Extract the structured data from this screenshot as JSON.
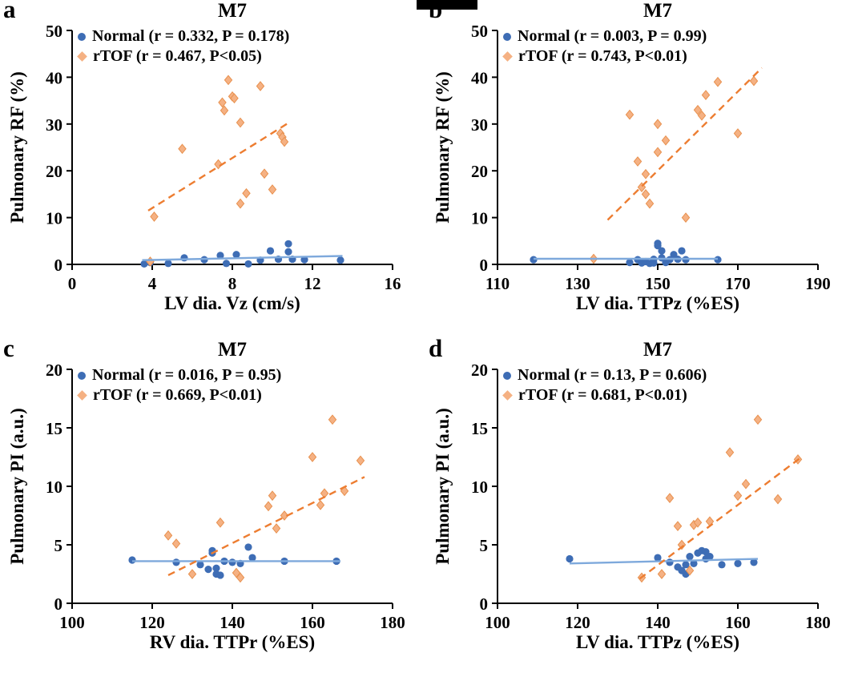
{
  "figure": {
    "panel_letters": [
      "a",
      "b",
      "c",
      "d"
    ]
  },
  "chart_data": [
    {
      "id": "a",
      "letter": "a",
      "type": "scatter",
      "title": "M7",
      "xlabel": "LV dia. Vz (cm/s)",
      "ylabel": "Pulmonary RF (%)",
      "xlim": [
        0,
        16
      ],
      "xticks": [
        0,
        4,
        8,
        12,
        16
      ],
      "ylim": [
        0,
        50
      ],
      "yticks": [
        0,
        10,
        20,
        30,
        40,
        50
      ],
      "grid": false,
      "legend_position": "top-left-inside",
      "legend": [
        {
          "label": "Normal (r = 0.332, P = 0.178)",
          "marker": "circle",
          "color": "#3E6DB5"
        },
        {
          "label": "rTOF (r = 0.467, P<0.05)",
          "marker": "diamond",
          "color": "#F5B183"
        }
      ],
      "series": [
        {
          "name": "Normal",
          "marker": "circle",
          "color": "#3E6DB5",
          "trend": {
            "x1": 3.5,
            "y1": 0.9,
            "x2": 13.5,
            "y2": 1.8,
            "style": "solid",
            "color": "#7EA9DC"
          },
          "points": [
            [
              3.6,
              0.1
            ],
            [
              3.9,
              0.4
            ],
            [
              4.8,
              0.2
            ],
            [
              5.6,
              1.4
            ],
            [
              6.6,
              1.0
            ],
            [
              7.4,
              1.9
            ],
            [
              7.7,
              0.2
            ],
            [
              8.2,
              2.1
            ],
            [
              8.8,
              0.1
            ],
            [
              9.4,
              0.9
            ],
            [
              9.9,
              2.9
            ],
            [
              10.3,
              1.1
            ],
            [
              10.8,
              4.4
            ],
            [
              10.8,
              2.7
            ],
            [
              11.0,
              1.1
            ],
            [
              11.6,
              1.0
            ],
            [
              13.4,
              0.9
            ]
          ]
        },
        {
          "name": "rTOF",
          "marker": "diamond",
          "color": "#F5B183",
          "stroke": "#E8914F",
          "trend": {
            "x1": 3.8,
            "y1": 11.5,
            "x2": 10.9,
            "y2": 30.5,
            "style": "dashed",
            "color": "#ED7D31"
          },
          "points": [
            [
              3.9,
              0.6
            ],
            [
              4.1,
              10.2
            ],
            [
              5.5,
              24.7
            ],
            [
              7.3,
              21.4
            ],
            [
              7.5,
              34.6
            ],
            [
              7.6,
              32.9
            ],
            [
              7.8,
              39.4
            ],
            [
              8.0,
              35.9
            ],
            [
              8.1,
              35.5
            ],
            [
              8.4,
              30.3
            ],
            [
              8.4,
              13.0
            ],
            [
              8.7,
              15.2
            ],
            [
              9.4,
              38.1
            ],
            [
              9.6,
              19.4
            ],
            [
              10.0,
              16.0
            ],
            [
              10.4,
              28.0
            ],
            [
              10.5,
              27.2
            ],
            [
              10.6,
              26.2
            ]
          ]
        }
      ]
    },
    {
      "id": "b",
      "letter": "b",
      "type": "scatter",
      "title": "M7",
      "xlabel": "LV dia. TTPz (%ES)",
      "ylabel": "Pulmonary RF (%)",
      "xlim": [
        110,
        190
      ],
      "xticks": [
        110,
        130,
        150,
        170,
        190
      ],
      "ylim": [
        0,
        50
      ],
      "yticks": [
        0,
        10,
        20,
        30,
        40,
        50
      ],
      "grid": false,
      "legend_position": "top-left-inside",
      "legend": [
        {
          "label": "Normal (r = 0.003, P = 0.99)",
          "marker": "circle",
          "color": "#3E6DB5"
        },
        {
          "label": "rTOF (r = 0.743, P<0.01)",
          "marker": "diamond",
          "color": "#F5B183"
        }
      ],
      "series": [
        {
          "name": "Normal",
          "marker": "circle",
          "color": "#3E6DB5",
          "trend": {
            "x1": 119,
            "y1": 1.2,
            "x2": 165,
            "y2": 1.2,
            "style": "solid",
            "color": "#7EA9DC"
          },
          "points": [
            [
              119,
              1.0
            ],
            [
              143,
              0.4
            ],
            [
              145,
              1.0
            ],
            [
              146,
              0.3
            ],
            [
              147,
              0.6
            ],
            [
              148,
              0.2
            ],
            [
              149,
              1.1
            ],
            [
              149,
              0.3
            ],
            [
              150,
              4.0
            ],
            [
              150,
              4.5
            ],
            [
              151,
              2.9
            ],
            [
              151,
              1.4
            ],
            [
              152,
              0.4
            ],
            [
              153,
              1.0
            ],
            [
              154,
              2.1
            ],
            [
              155,
              1.1
            ],
            [
              156,
              2.9
            ],
            [
              157,
              1.0
            ],
            [
              165,
              1.0
            ]
          ]
        },
        {
          "name": "rTOF",
          "marker": "diamond",
          "color": "#F5B183",
          "stroke": "#E8914F",
          "trend": {
            "x1": 137.5,
            "y1": 9.5,
            "x2": 176,
            "y2": 42,
            "style": "dashed",
            "color": "#ED7D31"
          },
          "points": [
            [
              134,
              1.2
            ],
            [
              143,
              32.0
            ],
            [
              145,
              22.0
            ],
            [
              146,
              16.5
            ],
            [
              147,
              19.3
            ],
            [
              147,
              15.0
            ],
            [
              148,
              13.0
            ],
            [
              150,
              24.0
            ],
            [
              150,
              30.0
            ],
            [
              152,
              26.5
            ],
            [
              157,
              10.0
            ],
            [
              160,
              33.0
            ],
            [
              161,
              31.8
            ],
            [
              162,
              36.2
            ],
            [
              165,
              39.0
            ],
            [
              170,
              28.0
            ],
            [
              174,
              39.2
            ]
          ]
        }
      ]
    },
    {
      "id": "c",
      "letter": "c",
      "type": "scatter",
      "title": "M7",
      "xlabel": "RV dia. TTPr (%ES)",
      "ylabel": "Pulmonary PI (a.u.)",
      "xlim": [
        100,
        180
      ],
      "xticks": [
        100,
        120,
        140,
        160,
        180
      ],
      "ylim": [
        0,
        20
      ],
      "yticks": [
        0,
        5,
        10,
        15,
        20
      ],
      "grid": false,
      "legend_position": "top-left-inside",
      "legend": [
        {
          "label": "Normal (r = 0.016, P = 0.95)",
          "marker": "circle",
          "color": "#3E6DB5"
        },
        {
          "label": "rTOF (r = 0.669, P<0.01)",
          "marker": "diamond",
          "color": "#F5B183"
        }
      ],
      "series": [
        {
          "name": "Normal",
          "marker": "circle",
          "color": "#3E6DB5",
          "trend": {
            "x1": 115,
            "y1": 3.6,
            "x2": 167,
            "y2": 3.6,
            "style": "solid",
            "color": "#7EA9DC"
          },
          "points": [
            [
              115,
              3.7
            ],
            [
              126,
              3.5
            ],
            [
              132,
              3.3
            ],
            [
              134,
              2.9
            ],
            [
              135,
              4.3
            ],
            [
              135,
              4.5
            ],
            [
              136,
              3.0
            ],
            [
              136,
              2.5
            ],
            [
              137,
              2.4
            ],
            [
              138,
              3.6
            ],
            [
              140,
              3.5
            ],
            [
              142,
              3.4
            ],
            [
              144,
              4.8
            ],
            [
              145,
              3.9
            ],
            [
              153,
              3.6
            ],
            [
              166,
              3.6
            ]
          ]
        },
        {
          "name": "rTOF",
          "marker": "diamond",
          "color": "#F5B183",
          "stroke": "#E8914F",
          "trend": {
            "x1": 124,
            "y1": 2.4,
            "x2": 173,
            "y2": 10.8,
            "style": "dashed",
            "color": "#ED7D31"
          },
          "points": [
            [
              124,
              5.8
            ],
            [
              126,
              5.1
            ],
            [
              130,
              2.5
            ],
            [
              137,
              6.9
            ],
            [
              141,
              2.6
            ],
            [
              142,
              2.2
            ],
            [
              149,
              8.3
            ],
            [
              150,
              9.2
            ],
            [
              151,
              6.4
            ],
            [
              153,
              7.5
            ],
            [
              160,
              12.5
            ],
            [
              162,
              8.4
            ],
            [
              163,
              9.4
            ],
            [
              165,
              15.7
            ],
            [
              168,
              9.6
            ],
            [
              172,
              12.2
            ]
          ]
        }
      ]
    },
    {
      "id": "d",
      "letter": "d",
      "type": "scatter",
      "title": "M7",
      "xlabel": "LV dia. TTPz (%ES)",
      "ylabel": "Pulmonary PI (a.u.)",
      "xlim": [
        100,
        180
      ],
      "xticks": [
        100,
        120,
        140,
        160,
        180
      ],
      "ylim": [
        0,
        20
      ],
      "yticks": [
        0,
        5,
        10,
        15,
        20
      ],
      "grid": false,
      "legend_position": "top-left-inside",
      "legend": [
        {
          "label": "Normal (r = 0.13, P = 0.606)",
          "marker": "circle",
          "color": "#3E6DB5"
        },
        {
          "label": "rTOF (r = 0.681, P<0.01)",
          "marker": "diamond",
          "color": "#F5B183"
        }
      ],
      "series": [
        {
          "name": "Normal",
          "marker": "circle",
          "color": "#3E6DB5",
          "trend": {
            "x1": 118,
            "y1": 3.4,
            "x2": 165,
            "y2": 3.8,
            "style": "solid",
            "color": "#7EA9DC"
          },
          "points": [
            [
              118,
              3.8
            ],
            [
              140,
              3.9
            ],
            [
              143,
              3.5
            ],
            [
              145,
              3.1
            ],
            [
              146,
              2.8
            ],
            [
              147,
              2.5
            ],
            [
              147,
              3.3
            ],
            [
              148,
              4.0
            ],
            [
              149,
              3.4
            ],
            [
              150,
              4.3
            ],
            [
              151,
              4.5
            ],
            [
              152,
              4.4
            ],
            [
              152,
              3.8
            ],
            [
              153,
              4.0
            ],
            [
              156,
              3.3
            ],
            [
              160,
              3.4
            ],
            [
              164,
              3.5
            ]
          ]
        },
        {
          "name": "rTOF",
          "marker": "diamond",
          "color": "#F5B183",
          "stroke": "#E8914F",
          "trend": {
            "x1": 135.5,
            "y1": 2.1,
            "x2": 175.5,
            "y2": 12.4,
            "style": "dashed",
            "color": "#ED7D31"
          },
          "points": [
            [
              136,
              2.2
            ],
            [
              141,
              2.5
            ],
            [
              143,
              9.0
            ],
            [
              145,
              6.6
            ],
            [
              146,
              5.0
            ],
            [
              148,
              2.8
            ],
            [
              149,
              6.7
            ],
            [
              150,
              6.9
            ],
            [
              153,
              7.0
            ],
            [
              158,
              12.9
            ],
            [
              160,
              9.2
            ],
            [
              162,
              10.2
            ],
            [
              165,
              15.7
            ],
            [
              170,
              8.9
            ],
            [
              175,
              12.3
            ]
          ]
        }
      ]
    }
  ]
}
